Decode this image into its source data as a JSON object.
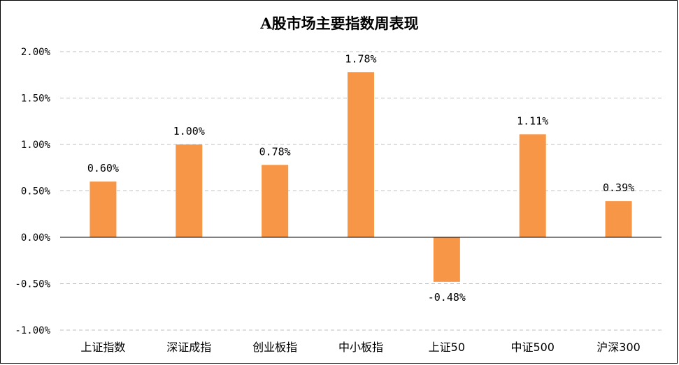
{
  "chart_data": {
    "type": "bar",
    "title": "A股市场主要指数周表现",
    "categories": [
      "上证指数",
      "深证成指",
      "创业板指",
      "中小板指",
      "上证50",
      "中证500",
      "沪深300"
    ],
    "values": [
      0.6,
      1.0,
      0.78,
      1.78,
      -0.48,
      1.11,
      0.39
    ],
    "data_labels": [
      "0.60%",
      "1.00%",
      "0.78%",
      "1.78%",
      "-0.48%",
      "1.11%",
      "0.39%"
    ],
    "y_ticks": [
      2.0,
      1.5,
      1.0,
      0.5,
      0.0,
      -0.5,
      -1.0
    ],
    "y_tick_labels": [
      "2.00%",
      "1.50%",
      "1.00%",
      "0.50%",
      "0.00%",
      "-0.50%",
      "-1.00%"
    ],
    "ylim": [
      -1.0,
      2.0
    ],
    "grid": "horizontal-dashed",
    "legend": "none",
    "bar_color": "#F79646",
    "grid_color": "#BFBFBF",
    "axis_color": "#000000"
  }
}
